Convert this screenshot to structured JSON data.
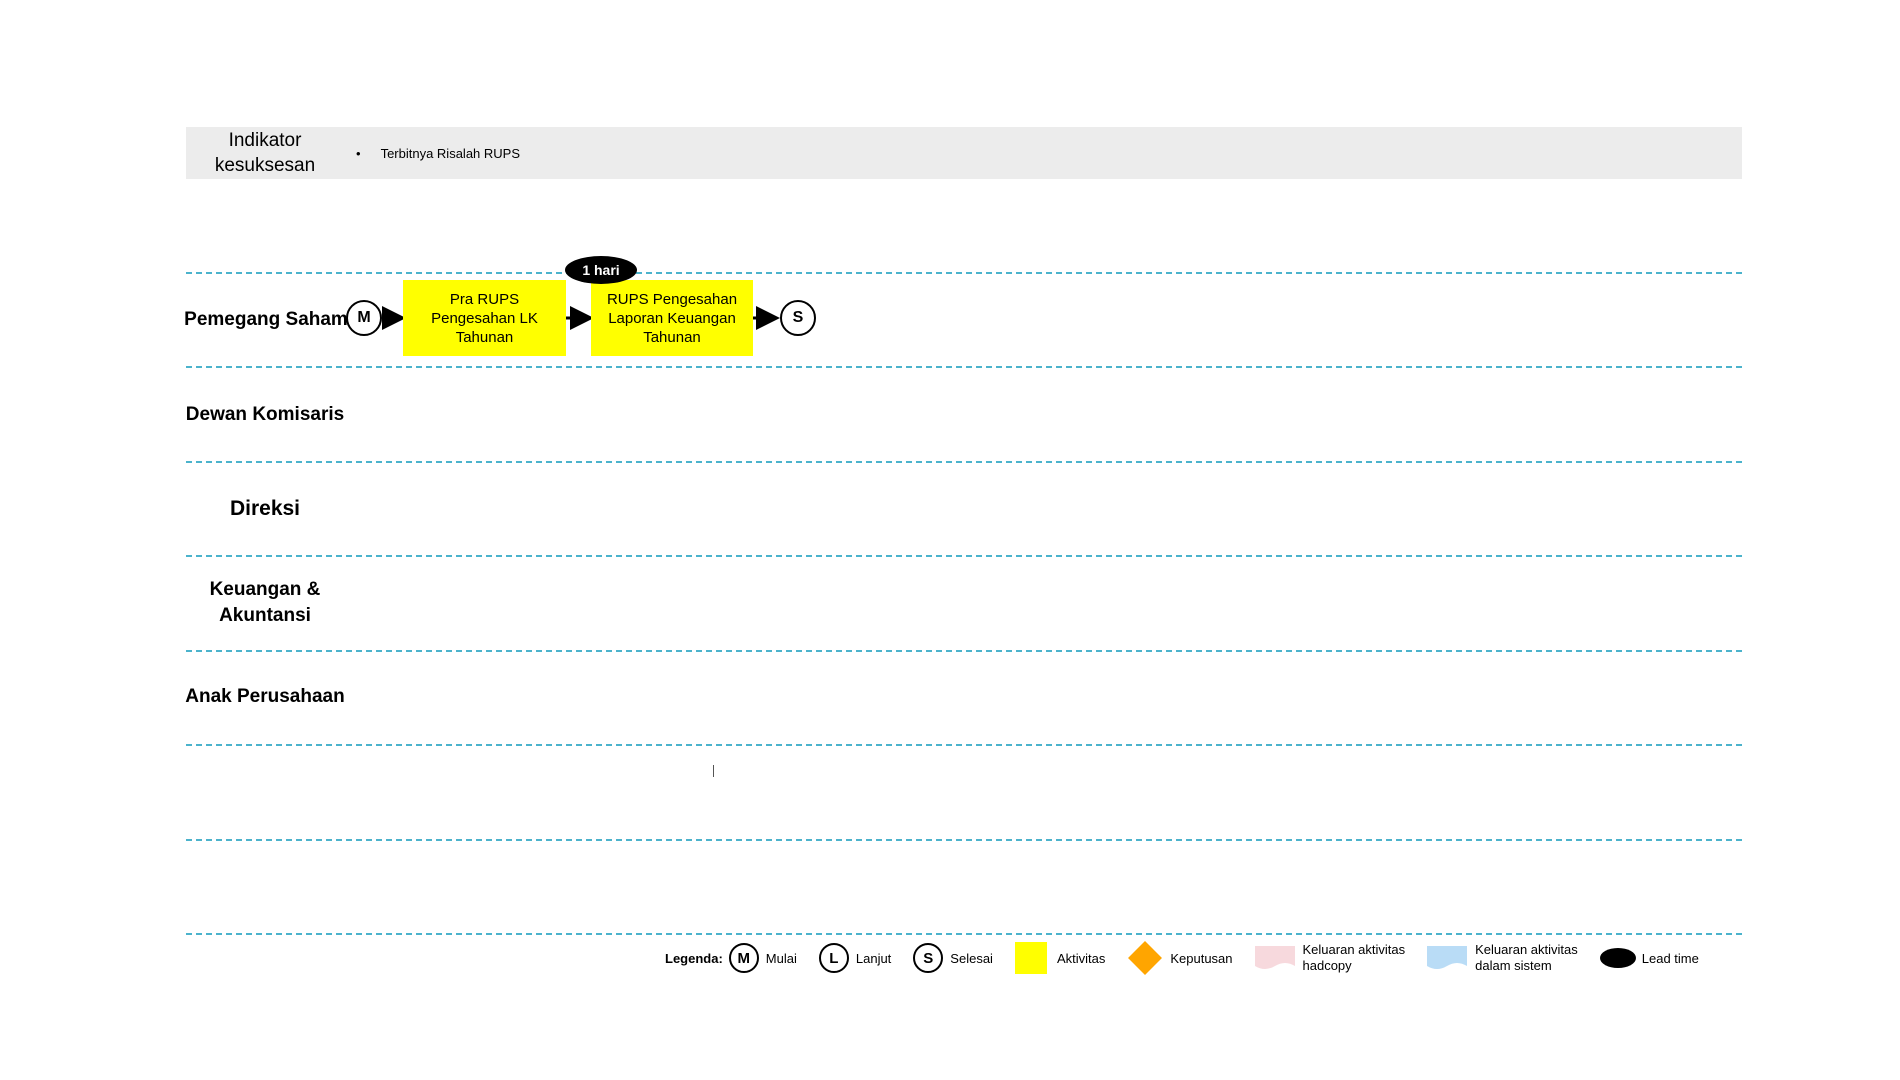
{
  "indicator": {
    "label_line1": "Indikator",
    "label_line2": "kesuksesan",
    "bullet": "•",
    "item": "Terbitnya Risalah RUPS"
  },
  "lanes": [
    {
      "label": "Pemegang Saham"
    },
    {
      "label": "Dewan Komisaris"
    },
    {
      "label": "Direksi"
    },
    {
      "label_line1": "Keuangan &",
      "label_line2": "Akuntansi"
    },
    {
      "label": "Anak Perusahaan"
    }
  ],
  "flow": {
    "start_symbol": "M",
    "end_symbol": "S",
    "activity1": {
      "line1": "Pra RUPS",
      "line2": "Pengesahan LK",
      "line3": "Tahunan"
    },
    "activity2": {
      "line1": "RUPS Pengesahan",
      "line2": "Laporan Keuangan",
      "line3": "Tahunan"
    },
    "leadtime": "1 hari"
  },
  "legend": {
    "title": "Legenda:",
    "start_symbol": "M",
    "start_label": "Mulai",
    "continue_symbol": "L",
    "continue_label": "Lanjut",
    "end_symbol": "S",
    "end_label": "Selesai",
    "activity_label": "Aktivitas",
    "decision_label": "Keputusan",
    "hardcopy_line1": "Keluaran aktivitas",
    "hardcopy_line2": "hadcopy",
    "system_line1": "Keluaran aktivitas",
    "system_line2": "dalam sistem",
    "leadtime_label": "Lead time"
  },
  "colors": {
    "activity": "#ffff00",
    "decision": "#ffa500",
    "lane_divider": "#4bb3cc",
    "hardcopy": "#f7d9dd",
    "system": "#b9dcf6"
  }
}
